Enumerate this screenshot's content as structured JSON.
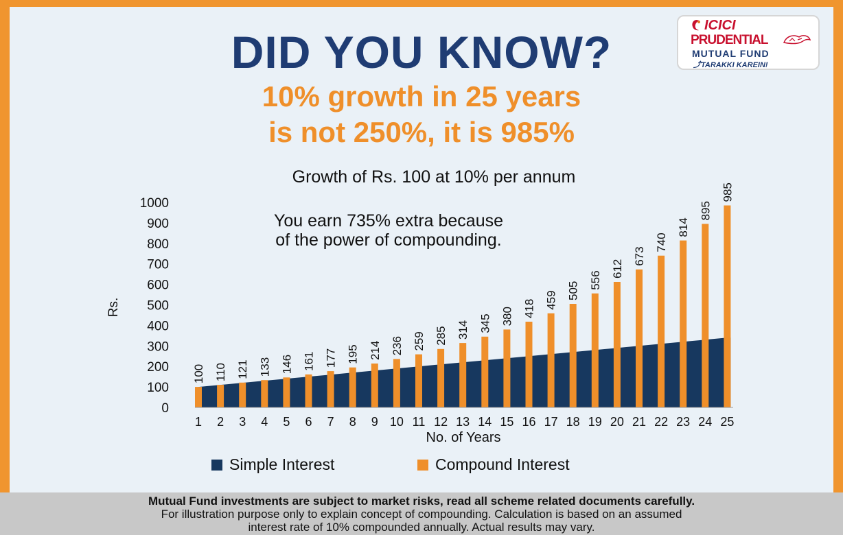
{
  "headline": "DID YOU KNOW?",
  "subheadline": [
    "10% growth in 25 years",
    "is not 250%, it is 985%"
  ],
  "logo": {
    "line1": "ICICI",
    "line2": "PRUDENTIAL",
    "line3": "MUTUAL FUND",
    "tagline": "TARAKKI KAREIN!",
    "brand_red": "#c8102e",
    "brand_blue": "#1f3c73"
  },
  "chart_data": {
    "type": "bar",
    "title": "Growth of Rs. 100 at 10% per annum",
    "annotation": [
      "You earn 735% extra because",
      "of the power of compounding."
    ],
    "xlabel": "No. of Years",
    "ylabel": "Rs.",
    "ylim": [
      0,
      1000
    ],
    "yticks": [
      0,
      100,
      200,
      300,
      400,
      500,
      600,
      700,
      800,
      900,
      1000
    ],
    "categories": [
      "1",
      "2",
      "3",
      "4",
      "5",
      "6",
      "7",
      "8",
      "9",
      "10",
      "11",
      "12",
      "13",
      "14",
      "15",
      "16",
      "17",
      "18",
      "19",
      "20",
      "21",
      "22",
      "23",
      "24",
      "25"
    ],
    "series": [
      {
        "name": "Simple Interest",
        "color": "#17385f",
        "type": "area",
        "values": [
          100,
          110,
          120,
          130,
          140,
          150,
          160,
          170,
          180,
          190,
          200,
          210,
          220,
          230,
          240,
          250,
          260,
          270,
          280,
          290,
          300,
          310,
          320,
          330,
          340
        ]
      },
      {
        "name": "Compound Interest",
        "color": "#ef8f2a",
        "type": "bar",
        "values": [
          100,
          110,
          121,
          133,
          146,
          161,
          177,
          195,
          214,
          236,
          259,
          285,
          314,
          345,
          380,
          418,
          459,
          505,
          556,
          612,
          673,
          740,
          814,
          895,
          985
        ],
        "labels": [
          "100",
          "110",
          "121",
          "133",
          "146",
          "161",
          "177",
          "195",
          "214",
          "236",
          "259",
          "285",
          "314",
          "345",
          "380",
          "418",
          "459",
          "505",
          "556",
          "612",
          "673",
          "740",
          "814",
          "895",
          "985"
        ]
      }
    ],
    "grid": false,
    "legend_position": "bottom"
  },
  "footer": {
    "line1": "Mutual Fund investments are subject to market risks, read all scheme related documents carefully.",
    "line2": "For illustration purpose only to explain concept of compounding. Calculation is based on an assumed",
    "line3": "interest rate of 10% compounded annually. Actual results may vary."
  }
}
